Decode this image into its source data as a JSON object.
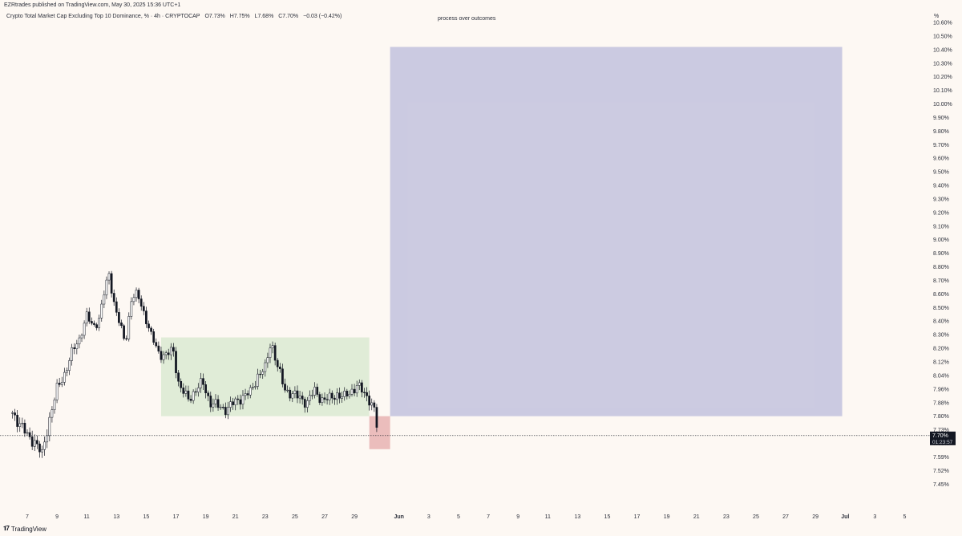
{
  "header": {
    "attribution": "EZRtrades published on TradingView.com, May 30, 2025 15:36 UTC+1",
    "symbol": "Crypto Total Market Cap Excluding Top 10 Dominance, % · 4h · CRYPTOCAP",
    "ohlc": {
      "open": "O7.73%",
      "high": "H7.75%",
      "low": "L7.68%",
      "close": "C7.70%",
      "change": "−0.03 (−0.42%)"
    }
  },
  "annotation": "process over outcomes",
  "price_axis_unit": "%",
  "footer": {
    "logo_text": "TradingView"
  },
  "colors": {
    "background": "#fdf8f3",
    "candle": "#131722",
    "range_box": "#c9e2bf",
    "target_box": "#8f93cc",
    "stop_box": "#e3a4a4",
    "last_price_label": "#131722"
  },
  "chart_data": {
    "type": "candlestick",
    "interval": "4h",
    "y_axis": {
      "unit": "%",
      "tick_labels": [
        "10.60%",
        "10.50%",
        "10.40%",
        "10.30%",
        "10.20%",
        "10.10%",
        "10.00%",
        "9.90%",
        "9.80%",
        "9.70%",
        "9.60%",
        "9.50%",
        "9.40%",
        "9.30%",
        "9.20%",
        "9.10%",
        "9.00%",
        "8.90%",
        "8.80%",
        "8.70%",
        "8.60%",
        "8.50%",
        "8.40%",
        "8.30%",
        "8.20%",
        "8.12%",
        "8.04%",
        "7.96%",
        "7.88%",
        "7.80%",
        "7.73%",
        "7.66%",
        "7.59%",
        "7.52%",
        "7.45%"
      ],
      "tick_values": [
        10.6,
        10.5,
        10.4,
        10.3,
        10.2,
        10.1,
        10.0,
        9.9,
        9.8,
        9.7,
        9.6,
        9.5,
        9.4,
        9.3,
        9.2,
        9.1,
        9.0,
        8.9,
        8.8,
        8.7,
        8.6,
        8.5,
        8.4,
        8.3,
        8.2,
        8.12,
        8.04,
        7.96,
        7.88,
        7.8,
        7.73,
        7.66,
        7.59,
        7.52,
        7.45
      ]
    },
    "x_axis": {
      "tick_labels": [
        "7",
        "9",
        "11",
        "13",
        "15",
        "17",
        "19",
        "21",
        "23",
        "25",
        "27",
        "29",
        "Jun",
        "3",
        "5",
        "7",
        "9",
        "11",
        "13",
        "15",
        "17",
        "19",
        "21",
        "23",
        "25",
        "27",
        "29",
        "Jul",
        "3",
        "5"
      ],
      "range_days": [
        6,
        66
      ]
    },
    "last_price": {
      "value": 7.7,
      "label": "7.70%",
      "countdown": "01:23:57"
    },
    "price_path": [
      [
        6.0,
        7.82
      ],
      [
        7.0,
        7.7
      ],
      [
        7.5,
        7.67
      ],
      [
        8.0,
        7.6
      ],
      [
        8.3,
        7.72
      ],
      [
        8.6,
        7.82
      ],
      [
        9.0,
        7.96
      ],
      [
        9.5,
        8.05
      ],
      [
        10.0,
        8.17
      ],
      [
        10.5,
        8.27
      ],
      [
        11.0,
        8.44
      ],
      [
        11.4,
        8.36
      ],
      [
        11.8,
        8.4
      ],
      [
        12.2,
        8.62
      ],
      [
        12.5,
        8.75
      ],
      [
        12.8,
        8.55
      ],
      [
        13.2,
        8.38
      ],
      [
        13.6,
        8.24
      ],
      [
        14.0,
        8.56
      ],
      [
        14.4,
        8.6
      ],
      [
        14.8,
        8.48
      ],
      [
        15.3,
        8.3
      ],
      [
        15.8,
        8.18
      ],
      [
        16.3,
        8.15
      ],
      [
        16.8,
        8.2
      ],
      [
        17.2,
        7.98
      ],
      [
        17.8,
        7.9
      ],
      [
        18.3,
        7.95
      ],
      [
        18.8,
        8.0
      ],
      [
        19.3,
        7.88
      ],
      [
        19.8,
        7.86
      ],
      [
        20.4,
        7.84
      ],
      [
        20.9,
        7.88
      ],
      [
        21.4,
        7.91
      ],
      [
        22.0,
        7.94
      ],
      [
        22.5,
        8.04
      ],
      [
        23.0,
        8.08
      ],
      [
        23.4,
        8.25
      ],
      [
        23.8,
        8.1
      ],
      [
        24.3,
        7.96
      ],
      [
        24.8,
        7.93
      ],
      [
        25.3,
        7.91
      ],
      [
        25.8,
        7.88
      ],
      [
        26.3,
        7.95
      ],
      [
        26.8,
        7.9
      ],
      [
        27.3,
        7.9
      ],
      [
        27.8,
        7.93
      ],
      [
        28.3,
        7.91
      ],
      [
        28.8,
        7.95
      ],
      [
        29.2,
        7.98
      ],
      [
        29.6,
        7.94
      ],
      [
        30.0,
        7.9
      ],
      [
        30.3,
        7.85
      ],
      [
        30.6,
        7.7
      ]
    ],
    "positions": [
      {
        "name": "consolidation range",
        "x_range": [
          16.0,
          30.0
        ],
        "y_range": [
          7.8,
          8.28
        ]
      },
      {
        "name": "take profit zone",
        "x_range": [
          31.4,
          61.8
        ],
        "y_range": [
          7.8,
          10.42
        ]
      },
      {
        "name": "stop zone",
        "x_range": [
          30.0,
          31.4
        ],
        "y_range": [
          7.63,
          7.8
        ]
      }
    ]
  }
}
